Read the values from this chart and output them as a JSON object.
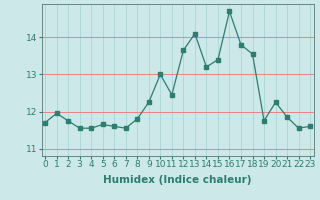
{
  "x": [
    0,
    1,
    2,
    3,
    4,
    5,
    6,
    7,
    8,
    9,
    10,
    11,
    12,
    13,
    14,
    15,
    16,
    17,
    18,
    19,
    20,
    21,
    22,
    23
  ],
  "y": [
    11.7,
    11.95,
    11.75,
    11.55,
    11.55,
    11.65,
    11.6,
    11.55,
    11.8,
    12.25,
    13.0,
    12.45,
    13.65,
    14.1,
    13.2,
    13.4,
    14.7,
    13.8,
    13.55,
    11.75,
    12.25,
    11.85,
    11.55,
    11.6
  ],
  "line_color": "#2d7d70",
  "bg_color": "#cce8e8",
  "grid_color_major": "#f08080",
  "grid_color_minor": "#b0d8d8",
  "xlabel": "Humidex (Indice chaleur)",
  "yticks": [
    11,
    12,
    13,
    14
  ],
  "xticks": [
    0,
    1,
    2,
    3,
    4,
    5,
    6,
    7,
    8,
    9,
    10,
    11,
    12,
    13,
    14,
    15,
    16,
    17,
    18,
    19,
    20,
    21,
    22,
    23
  ],
  "ylim": [
    10.8,
    14.9
  ],
  "xlim": [
    -0.3,
    23.3
  ],
  "xlabel_fontsize": 7.5,
  "tick_fontsize": 6.5,
  "marker_size": 2.5,
  "line_width": 0.9
}
